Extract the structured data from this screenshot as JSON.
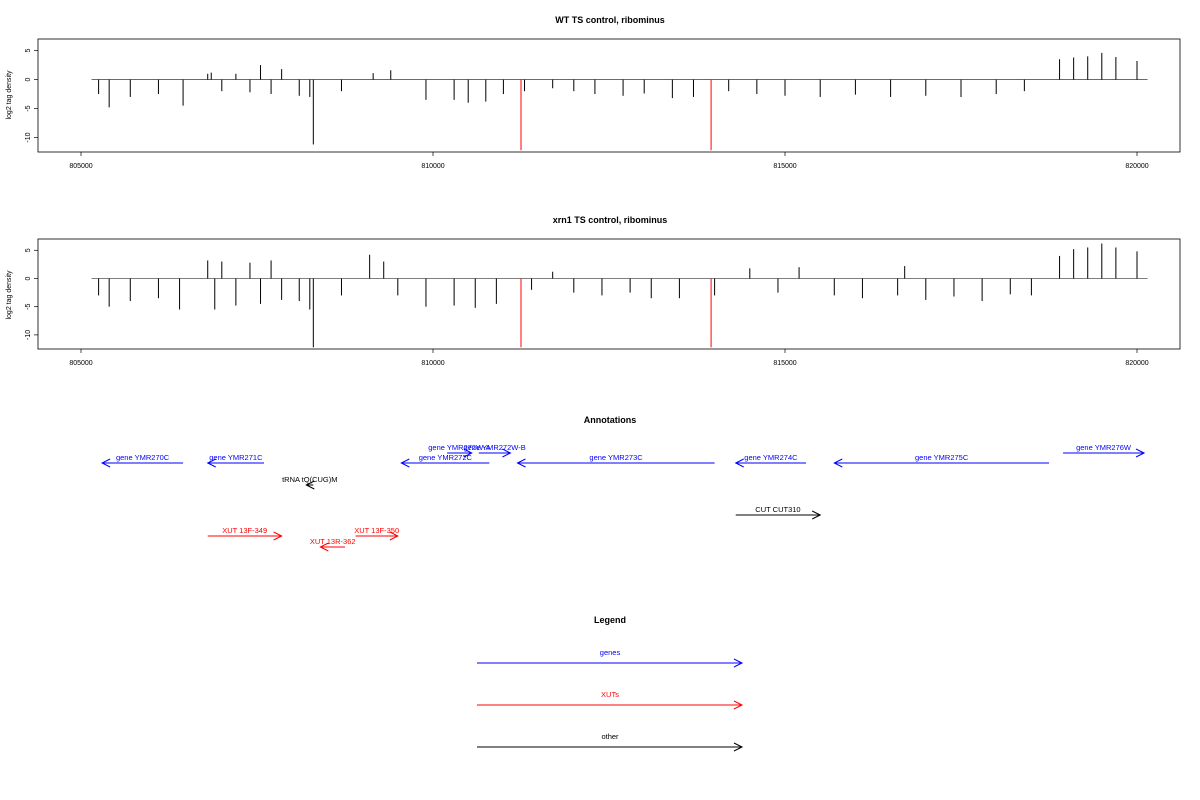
{
  "chart_data": [
    {
      "type": "bar",
      "title": "WT TS control, ribominus",
      "xlabel": "",
      "ylabel": "log2 tag density",
      "xlim": [
        805000,
        820200
      ],
      "ylim": [
        -12.5,
        7
      ],
      "xticks": [
        805000,
        810000,
        815000,
        820000
      ],
      "xtick_labels": [
        "805000",
        "810000",
        "815000",
        "820000"
      ],
      "yticks": [
        5,
        0,
        -5,
        -10
      ],
      "ytick_labels": [
        "5",
        "0",
        "-5",
        "-10"
      ],
      "highlight_color": "#ff0000",
      "series": [
        {
          "color": "#000000",
          "x": [
            805250,
            805400,
            805700,
            806100,
            806450,
            806800,
            806850,
            807000,
            807200,
            807400,
            807550,
            807700,
            807850,
            808100,
            808250,
            808300,
            808700,
            809150,
            809400,
            809900,
            810300,
            810500,
            810750,
            811000,
            811300,
            811700,
            812000,
            812300,
            812700,
            813000,
            813400,
            813700,
            814200,
            814600,
            815000,
            815500,
            816000,
            816500,
            817000,
            817500,
            818000,
            818400,
            818900,
            819100,
            819300,
            819500,
            819700,
            820000
          ],
          "y": [
            -2.5,
            -4.8,
            -3,
            -2.5,
            -4.5,
            1,
            1.2,
            -2,
            1,
            -2.2,
            2.5,
            -2.5,
            1.8,
            -2.8,
            -3,
            -11.2,
            -2,
            1.1,
            1.6,
            -3.5,
            -3.5,
            -4,
            -3.8,
            -2.5,
            -2,
            -1.5,
            -2,
            -2.5,
            -2.8,
            -2.4,
            -3.2,
            -3,
            -2,
            -2.5,
            -2.8,
            -3,
            -2.6,
            -3,
            -2.8,
            -3,
            -2.5,
            -2,
            3.5,
            3.8,
            4,
            4.6,
            3.9,
            3.2
          ]
        },
        {
          "color": "#ff0000",
          "x": [
            811250,
            813950
          ],
          "y": [
            -12.2,
            -12.2
          ]
        }
      ]
    },
    {
      "type": "bar",
      "title": "xrn1 TS control, ribominus",
      "xlabel": "",
      "ylabel": "log2 tag density",
      "xlim": [
        805000,
        820200
      ],
      "ylim": [
        -12.5,
        7
      ],
      "xticks": [
        805000,
        810000,
        815000,
        820000
      ],
      "xtick_labels": [
        "805000",
        "810000",
        "815000",
        "820000"
      ],
      "yticks": [
        5,
        0,
        -5,
        -10
      ],
      "ytick_labels": [
        "5",
        "0",
        "-5",
        "-10"
      ],
      "highlight_color": "#ff0000",
      "series": [
        {
          "color": "#000000",
          "x": [
            805250,
            805400,
            805700,
            806100,
            806400,
            806800,
            806900,
            807000,
            807200,
            807400,
            807550,
            807700,
            807850,
            808100,
            808250,
            808300,
            808700,
            809100,
            809300,
            809500,
            809900,
            810300,
            810600,
            810900,
            811400,
            811700,
            812000,
            812400,
            812800,
            813100,
            813500,
            814000,
            814500,
            814900,
            815200,
            815700,
            816100,
            816600,
            816700,
            817000,
            817400,
            817800,
            818200,
            818500,
            818900,
            819100,
            819300,
            819500,
            819700,
            820000
          ],
          "y": [
            -3,
            -5,
            -4,
            -3.5,
            -5.5,
            3.2,
            -5.5,
            3,
            -4.8,
            2.8,
            -4.5,
            3.2,
            -3.8,
            -4,
            -5.5,
            -12.2,
            -3,
            4.2,
            3,
            -3,
            -5,
            -4.8,
            -5.2,
            -4.5,
            -2,
            1.2,
            -2.5,
            -3,
            -2.5,
            -3.5,
            -3.5,
            -3,
            1.8,
            -2.5,
            2,
            -3,
            -3.5,
            -3,
            2.2,
            -3.8,
            -3.2,
            -4,
            -2.8,
            -3,
            4,
            5.2,
            5.5,
            6.2,
            5.5,
            4.8
          ]
        },
        {
          "color": "#ff0000",
          "x": [
            811250,
            813950
          ],
          "y": [
            -12.2,
            -12.2
          ]
        }
      ]
    }
  ],
  "annotations": {
    "title": "Annotations",
    "features": [
      {
        "label": "gene YMR270C",
        "start": 805300,
        "end": 806450,
        "strand": "-",
        "color": "#0000ff",
        "row": 1
      },
      {
        "label": "gene YMR271C",
        "start": 806800,
        "end": 807600,
        "strand": "-",
        "color": "#0000ff",
        "row": 1
      },
      {
        "label": "gene YMR272W-A",
        "start": 810200,
        "end": 810550,
        "strand": "+",
        "color": "#0000ff",
        "row": 0
      },
      {
        "label": "gene YMR272W-B",
        "start": 810650,
        "end": 811100,
        "strand": "+",
        "color": "#0000ff",
        "row": 0
      },
      {
        "label": "gene YMR272C",
        "start": 809550,
        "end": 810800,
        "strand": "-",
        "color": "#0000ff",
        "row": 1
      },
      {
        "label": "gene YMR273C",
        "start": 811200,
        "end": 814000,
        "strand": "-",
        "color": "#0000ff",
        "row": 1
      },
      {
        "label": "gene YMR274C",
        "start": 814300,
        "end": 815300,
        "strand": "-",
        "color": "#0000ff",
        "row": 1
      },
      {
        "label": "gene YMR275C",
        "start": 815700,
        "end": 818750,
        "strand": "-",
        "color": "#0000ff",
        "row": 1
      },
      {
        "label": "gene YMR276W",
        "start": 818950,
        "end": 820100,
        "strand": "+",
        "color": "#0000ff",
        "row": 0
      },
      {
        "label": "tRNA tQ(CUG)M",
        "start": 808200,
        "end": 808300,
        "strand": "-",
        "color": "#000000",
        "row": 2
      },
      {
        "label": "CUT CUT310",
        "start": 814300,
        "end": 815500,
        "strand": "+",
        "color": "#000000",
        "row": 3
      },
      {
        "label": "XUT 13F-349",
        "start": 806800,
        "end": 807850,
        "strand": "+",
        "color": "#ff0000",
        "row": 4
      },
      {
        "label": "XUT 13F-350",
        "start": 808900,
        "end": 809500,
        "strand": "+",
        "color": "#ff0000",
        "row": 4
      },
      {
        "label": "XUT 13R-362",
        "start": 808400,
        "end": 808750,
        "strand": "-",
        "color": "#ff0000",
        "row": 5
      }
    ]
  },
  "legend": {
    "title": "Legend",
    "items": [
      {
        "label": "genes",
        "color": "#0000ff"
      },
      {
        "label": "XUTs",
        "color": "#ff0000"
      },
      {
        "label": "other",
        "color": "#000000"
      }
    ]
  }
}
